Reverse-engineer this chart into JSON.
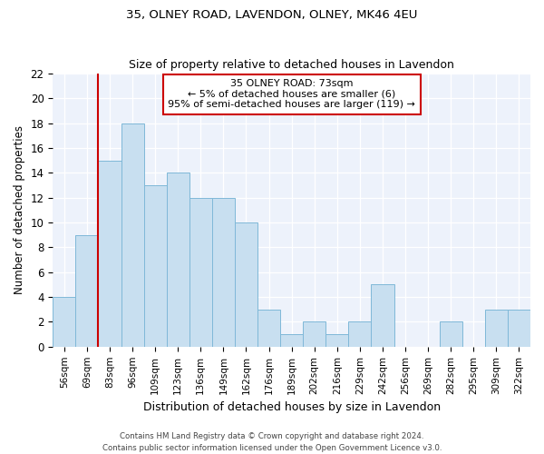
{
  "title": "35, OLNEY ROAD, LAVENDON, OLNEY, MK46 4EU",
  "subtitle": "Size of property relative to detached houses in Lavendon",
  "xlabel": "Distribution of detached houses by size in Lavendon",
  "ylabel": "Number of detached properties",
  "bin_labels": [
    "56sqm",
    "69sqm",
    "83sqm",
    "96sqm",
    "109sqm",
    "123sqm",
    "136sqm",
    "149sqm",
    "162sqm",
    "176sqm",
    "189sqm",
    "202sqm",
    "216sqm",
    "229sqm",
    "242sqm",
    "256sqm",
    "269sqm",
    "282sqm",
    "295sqm",
    "309sqm",
    "322sqm"
  ],
  "bar_heights": [
    4,
    9,
    15,
    18,
    13,
    14,
    12,
    12,
    10,
    3,
    1,
    2,
    1,
    2,
    5,
    0,
    0,
    2,
    0,
    3,
    3
  ],
  "bar_color": "#c8dff0",
  "bar_edge_color": "#7fb8d8",
  "bg_color": "#edf2fb",
  "ylim": [
    0,
    22
  ],
  "yticks": [
    0,
    2,
    4,
    6,
    8,
    10,
    12,
    14,
    16,
    18,
    20,
    22
  ],
  "marker_bin_index": 2,
  "marker_color": "#cc0000",
  "annotation_title": "35 OLNEY ROAD: 73sqm",
  "annotation_line1": "← 5% of detached houses are smaller (6)",
  "annotation_line2": "95% of semi-detached houses are larger (119) →",
  "annotation_box_color": "#ffffff",
  "annotation_box_edge": "#cc0000",
  "footer1": "Contains HM Land Registry data © Crown copyright and database right 2024.",
  "footer2": "Contains public sector information licensed under the Open Government Licence v3.0."
}
